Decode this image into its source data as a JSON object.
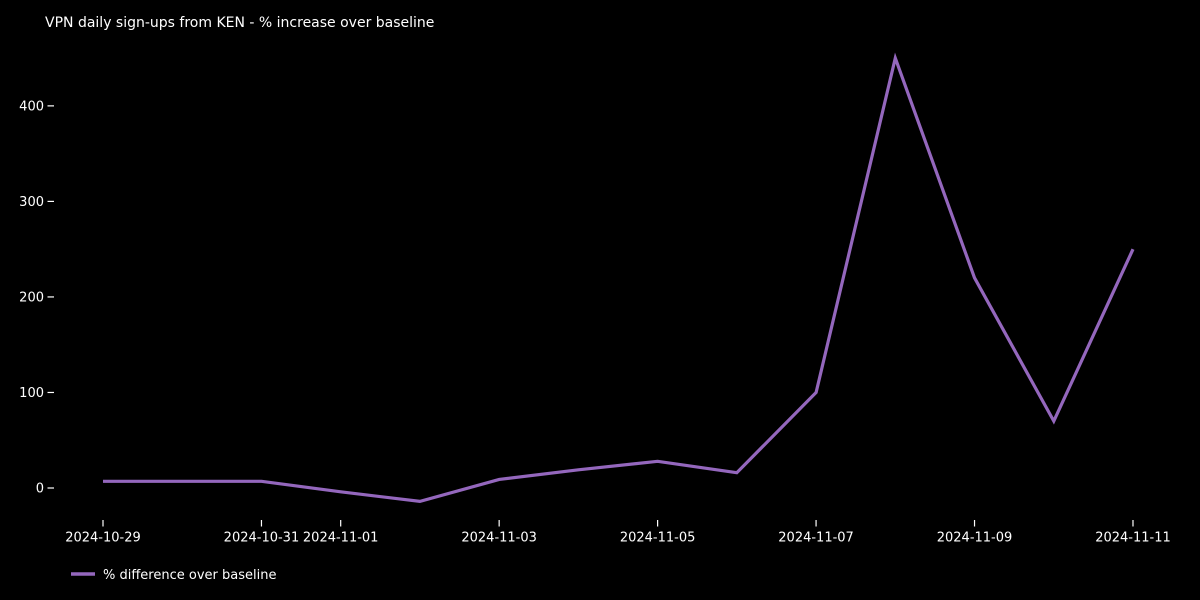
{
  "title": "VPN daily sign-ups from KEN - % increase over baseline",
  "legend": {
    "label": "% difference over baseline"
  },
  "colors": {
    "background": "#000000",
    "text": "#ffffff",
    "line": "#9467bd"
  },
  "axes": {
    "y_tick_labels": [
      "0",
      "100",
      "200",
      "300",
      "400"
    ],
    "x_tick_labels": [
      "2024-10-29",
      "2024-10-31",
      "2024-11-01",
      "2024-11-03",
      "2024-11-05",
      "2024-11-07",
      "2024-11-09",
      "2024-11-11"
    ]
  },
  "chart_data": {
    "type": "line",
    "title": "VPN daily sign-ups from KEN - % increase over baseline",
    "x": [
      "2024-10-29",
      "2024-10-30",
      "2024-10-31",
      "2024-11-01",
      "2024-11-02",
      "2024-11-03",
      "2024-11-04",
      "2024-11-05",
      "2024-11-06",
      "2024-11-07",
      "2024-11-08",
      "2024-11-09",
      "2024-11-10",
      "2024-11-11"
    ],
    "series": [
      {
        "name": "% difference over baseline",
        "values": [
          7,
          7,
          7,
          -4,
          -14,
          9,
          19,
          28,
          16,
          100,
          450,
          220,
          70,
          250
        ]
      }
    ],
    "x_tick_labels": [
      "2024-10-29",
      "2024-10-31",
      "2024-11-01",
      "2024-11-03",
      "2024-11-05",
      "2024-11-07",
      "2024-11-09",
      "2024-11-11"
    ],
    "y_ticks": [
      0,
      100,
      200,
      300,
      400
    ],
    "xlabel": "",
    "ylabel": "",
    "ylim": [
      -35,
      465
    ],
    "grid": false,
    "legend_position": "lower-left",
    "background": "black"
  }
}
